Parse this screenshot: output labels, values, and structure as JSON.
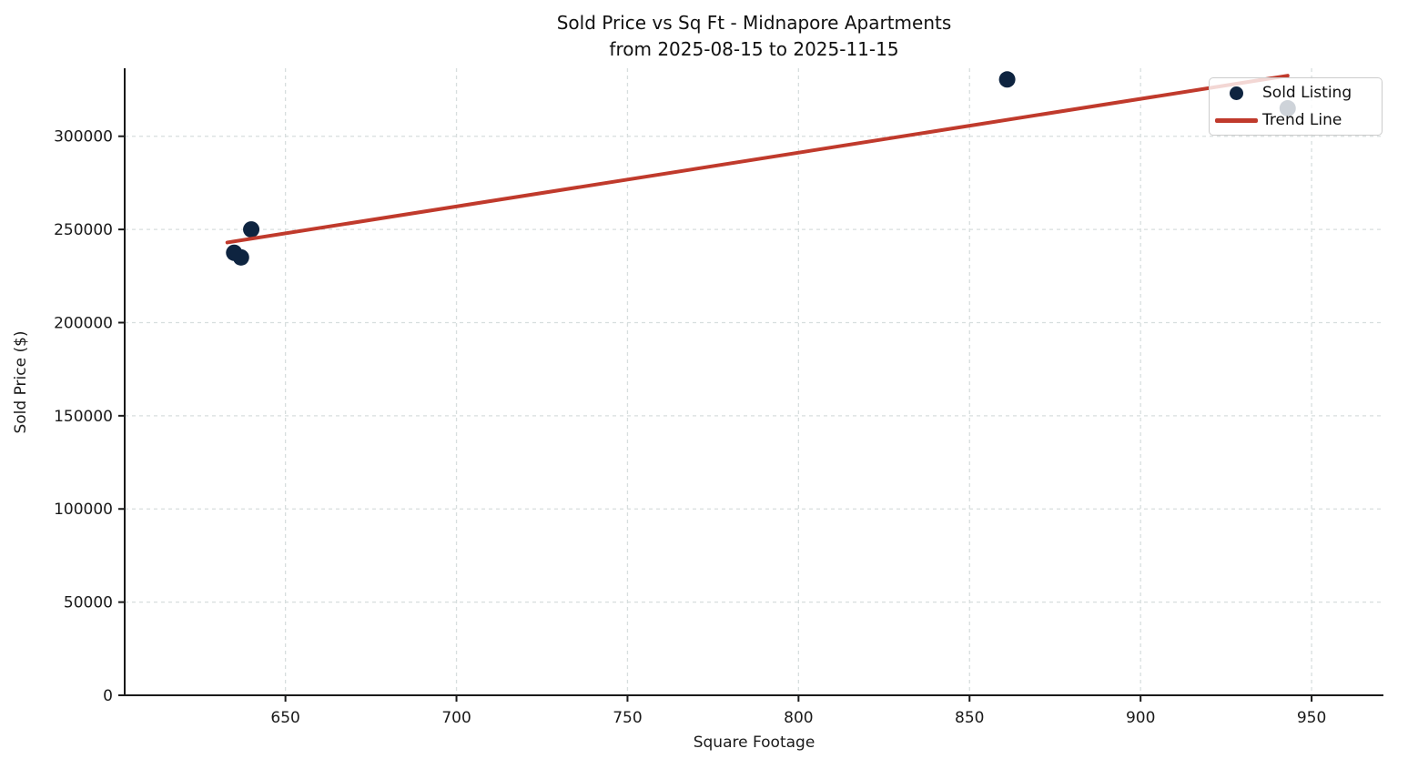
{
  "chart_data": {
    "type": "scatter",
    "title": "Sold Price vs Sq Ft - Midnapore Apartments",
    "subtitle": "from 2025-08-15 to 2025-11-15",
    "xlabel": "Square Footage",
    "ylabel": "Sold Price ($)",
    "xlim": [
      603,
      971
    ],
    "ylim": [
      0,
      336500
    ],
    "x_ticks": [
      650,
      700,
      750,
      800,
      850,
      900,
      950
    ],
    "y_ticks": [
      0,
      50000,
      100000,
      150000,
      200000,
      250000,
      300000
    ],
    "grid": {
      "show": true,
      "style": "dashed",
      "color": "#d7dede"
    },
    "background": "#ffffff",
    "legend": {
      "position": "upper right",
      "entries": [
        "Sold Listing",
        "Trend Line"
      ]
    },
    "series": [
      {
        "name": "Sold Listing",
        "kind": "scatter",
        "color": "#0e2440",
        "marker": "circle",
        "marker_radius": 9,
        "points": [
          {
            "sqft": 635,
            "price": 237500
          },
          {
            "sqft": 637,
            "price": 235000
          },
          {
            "sqft": 640,
            "price": 250000
          },
          {
            "sqft": 861,
            "price": 330500
          },
          {
            "sqft": 943,
            "price": 315000
          }
        ]
      },
      {
        "name": "Trend Line",
        "kind": "line",
        "color": "#c03a2c",
        "line_width": 4,
        "points": [
          {
            "sqft": 633,
            "price": 243000
          },
          {
            "sqft": 943,
            "price": 332500
          }
        ]
      }
    ]
  }
}
